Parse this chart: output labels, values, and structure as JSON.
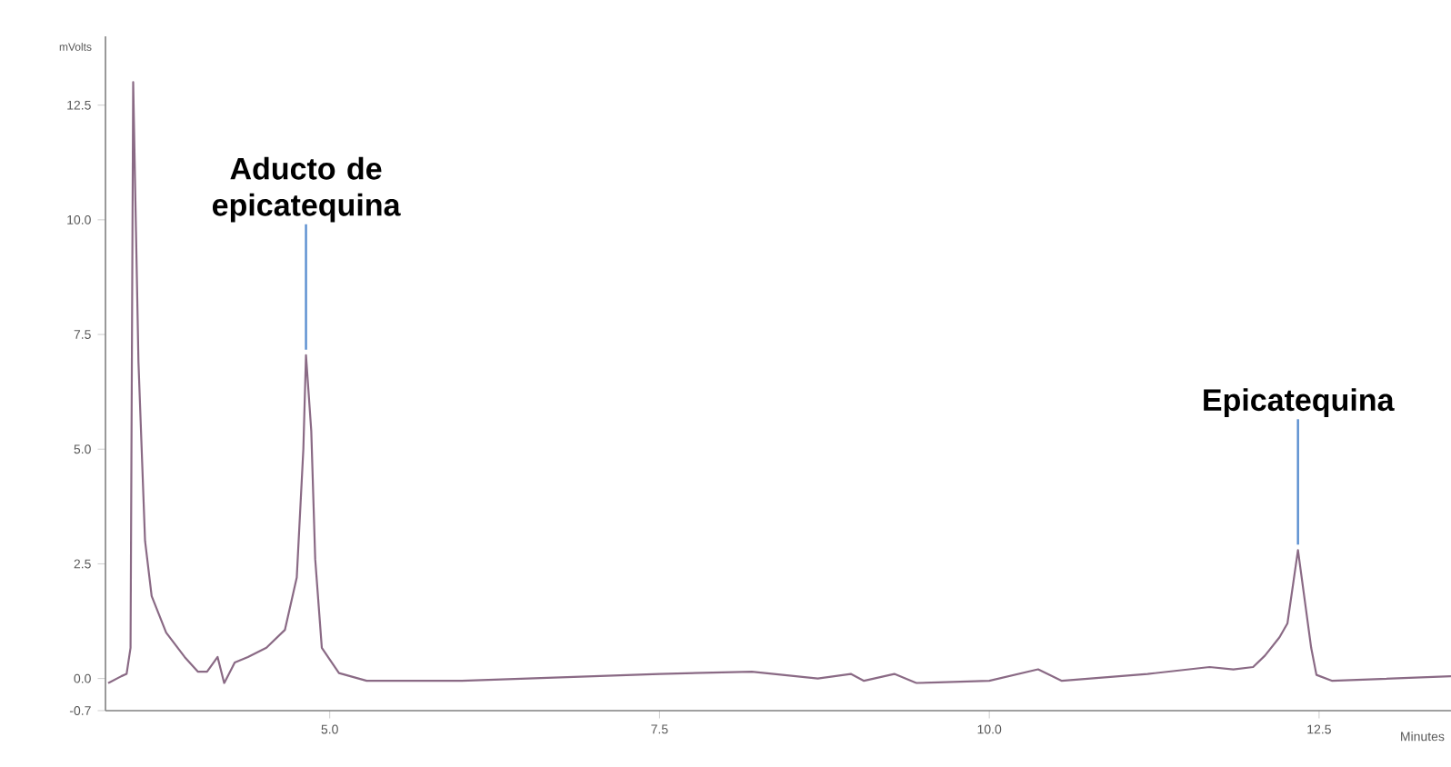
{
  "chart_data": {
    "type": "line",
    "xlabel": "Minutes",
    "ylabel": "mVolts",
    "xlim": [
      3.3,
      13.5
    ],
    "ylim": [
      -0.7,
      14.0
    ],
    "xticks": [
      {
        "value": 5,
        "label": "5.0"
      },
      7.5,
      {
        "value": 10,
        "label": "10.0"
      },
      12.5
    ],
    "yticks": [
      -0.7,
      {
        "value": 0,
        "label": "0.0"
      },
      2.5,
      {
        "value": 5,
        "label": "5.0"
      },
      7.5,
      {
        "value": 10,
        "label": "10.0"
      },
      12.5
    ],
    "marker": "none",
    "line_style": "solid",
    "annotations": [
      {
        "text": "Aducto de epicatequina",
        "x": 4.82,
        "y": 7.05
      },
      {
        "text": "Epicatequina",
        "x": 12.34,
        "y": 2.8
      }
    ],
    "series": [
      {
        "color": "#8a6a85",
        "x": [
          3.32,
          3.42,
          3.46,
          3.49,
          3.51,
          3.55,
          3.6,
          3.65,
          3.76,
          3.9,
          4.0,
          4.07,
          4.15,
          4.2,
          4.28,
          4.38,
          4.52,
          4.66,
          4.75,
          4.8,
          4.82,
          4.86,
          4.89,
          4.94,
          5.07,
          5.28,
          6.0,
          6.5,
          7.0,
          7.5,
          8.2,
          8.7,
          8.95,
          9.05,
          9.28,
          9.45,
          10.0,
          10.37,
          10.55,
          11.2,
          11.67,
          11.85,
          12.0,
          12.09,
          12.2,
          12.26,
          12.34,
          12.44,
          12.48,
          12.6,
          13.5
        ],
        "values": [
          -0.1,
          0.05,
          0.1,
          0.67,
          13.0,
          6.9,
          3.0,
          1.8,
          1.0,
          0.47,
          0.15,
          0.15,
          0.47,
          -0.1,
          0.35,
          0.47,
          0.67,
          1.06,
          2.2,
          5.0,
          7.05,
          5.4,
          2.6,
          0.67,
          0.12,
          -0.05,
          -0.05,
          0.0,
          0.05,
          0.1,
          0.15,
          0.0,
          0.1,
          -0.05,
          0.1,
          -0.1,
          -0.05,
          0.2,
          -0.05,
          0.1,
          0.25,
          0.2,
          0.25,
          0.5,
          0.9,
          1.2,
          2.8,
          0.67,
          0.08,
          -0.05,
          0.05
        ]
      }
    ]
  }
}
